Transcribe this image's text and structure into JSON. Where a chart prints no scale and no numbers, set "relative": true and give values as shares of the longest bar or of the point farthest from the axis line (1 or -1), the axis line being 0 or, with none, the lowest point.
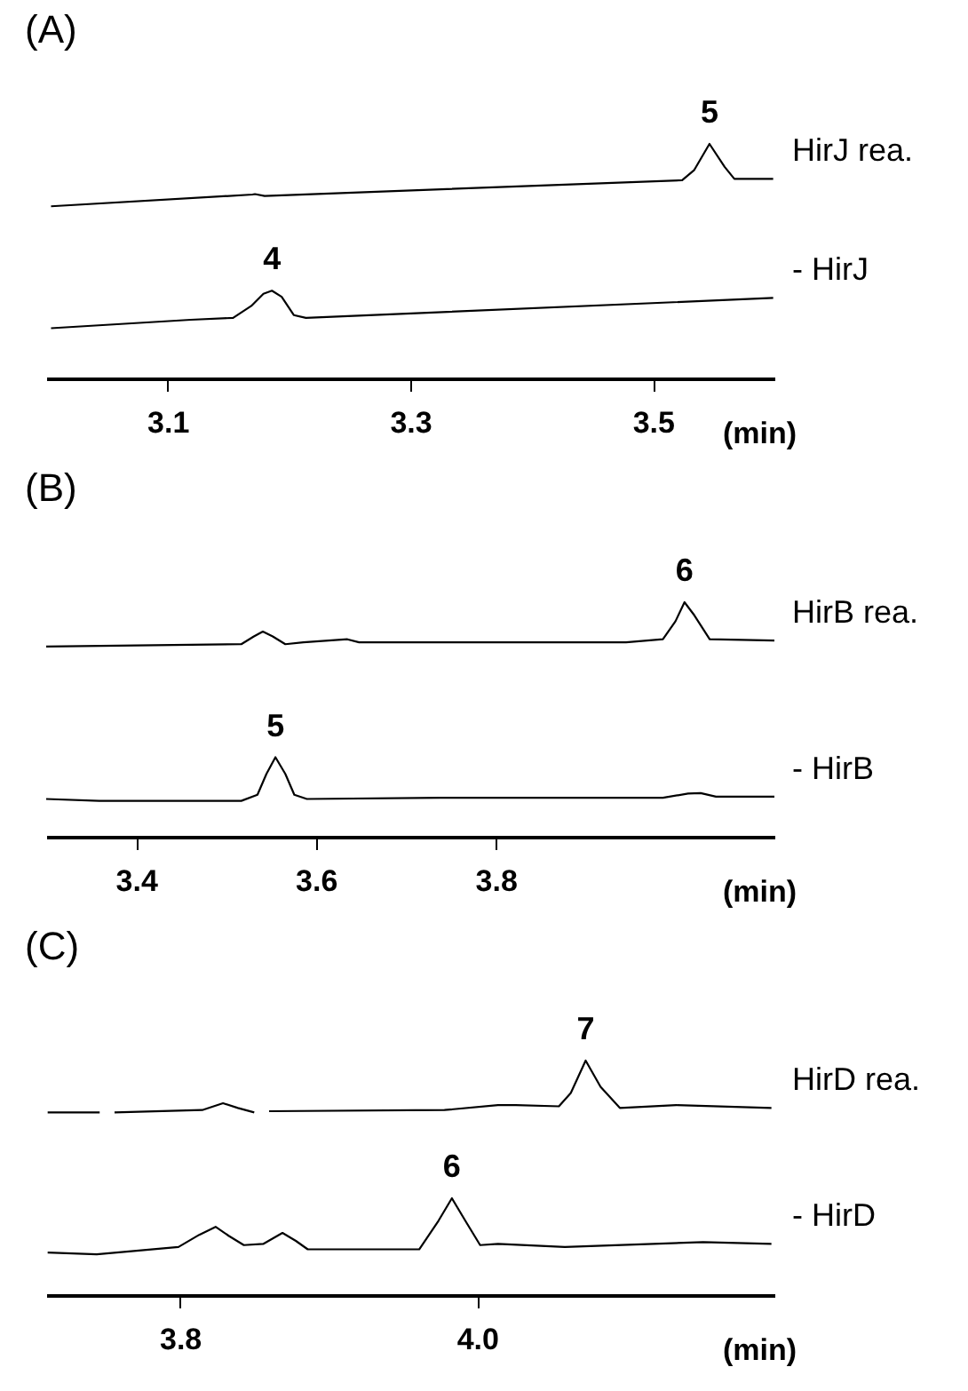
{
  "chart_data": [
    {
      "type": "line",
      "title": "(A)",
      "xlabel": "(min)",
      "relative": true,
      "xlim": [
        3.0,
        3.6
      ],
      "xticks": [
        3.1,
        3.3,
        3.5
      ],
      "series": [
        {
          "name": "HirJ rea.",
          "color": "#000000",
          "x": [
            3.004,
            3.17,
            3.172,
            3.18,
            3.524,
            3.534,
            3.5465,
            3.559,
            3.567,
            3.599
          ],
          "values": [
            0.734,
            0.784,
            0.786,
            0.778,
            0.845,
            0.889,
            1,
            0.902,
            0.851,
            0.851
          ]
        },
        {
          "name": "- HirJ",
          "color": "#000000",
          "x": [
            3.004,
            3.119,
            3.154,
            3.169,
            3.179,
            3.186,
            3.194,
            3.204,
            3.214,
            3.599
          ],
          "values": [
            0.214,
            0.25,
            0.258,
            0.309,
            0.361,
            0.374,
            0.348,
            0.27,
            0.258,
            0.343
          ]
        }
      ],
      "annotations": [
        {
          "text": "5",
          "x": 3.5465,
          "y": 1
        },
        {
          "text": "4",
          "x": 3.186,
          "y": 0.374
        }
      ]
    },
    {
      "type": "line",
      "title": "(B)",
      "xlabel": "(min)",
      "relative": true,
      "xlim": [
        3.3,
        4.11
      ],
      "xticks": [
        3.4,
        3.6,
        3.8
      ],
      "series": [
        {
          "name": "HirB rea.",
          "color": "#000000",
          "x": [
            3.3,
            3.517,
            3.531,
            3.541,
            3.552,
            3.566,
            3.586,
            3.635,
            3.648,
            3.945,
            3.986,
            4.0,
            4.01,
            4.021,
            4.038,
            4.11
          ],
          "values": [
            0.811,
            0.821,
            0.854,
            0.875,
            0.854,
            0.821,
            0.829,
            0.842,
            0.829,
            0.829,
            0.842,
            0.919,
            1,
            0.944,
            0.842,
            0.837
          ]
        },
        {
          "name": "- HirB",
          "color": "#000000",
          "x": [
            3.3,
            3.359,
            3.517,
            3.535,
            3.545,
            3.555,
            3.566,
            3.576,
            3.59,
            3.738,
            3.986,
            4.014,
            4.028,
            4.045,
            4.11
          ],
          "values": [
            0.161,
            0.153,
            0.153,
            0.179,
            0.268,
            0.339,
            0.268,
            0.179,
            0.161,
            0.166,
            0.166,
            0.184,
            0.186,
            0.171,
            0.171
          ]
        }
      ],
      "annotations": [
        {
          "text": "6",
          "x": 4.01,
          "y": 1
        },
        {
          "text": "5",
          "x": 3.555,
          "y": 0.339
        }
      ]
    },
    {
      "type": "line",
      "title": "(C)",
      "xlabel": "(min)",
      "relative": true,
      "xlim": [
        3.71,
        4.2
      ],
      "xticks": [
        3.8,
        {
          "value": 4,
          "label": "4.0"
        }
      ],
      "series": [
        {
          "name": "HirD rea.",
          "color": "#000000",
          "x": [
            3.711,
            3.746,
            3.75,
            3.756,
            3.815,
            3.829,
            3.839,
            3.85,
            3.855,
            3.86,
            3.978,
            4.014,
            4.026,
            4.055,
            4.063,
            4.073,
            4.083,
            4.096,
            4.134,
            4.198
          ],
          "values": [
            0.779,
            0.779,
            null,
            0.779,
            0.789,
            0.818,
            0.798,
            0.779,
            null,
            0.784,
            0.789,
            0.81,
            0.81,
            0.805,
            0.862,
            1,
            0.888,
            0.798,
            0.81,
            0.798
          ]
        },
        {
          "name": "- HirD",
          "color": "#000000",
          "x": [
            3.711,
            3.744,
            3.799,
            3.813,
            3.824,
            3.833,
            3.843,
            3.856,
            3.869,
            3.878,
            3.886,
            3.961,
            3.974,
            3.983,
            3.992,
            4.002,
            4.014,
            4.059,
            4.152,
            4.198
          ],
          "values": [
            0.181,
            0.174,
            0.205,
            0.257,
            0.291,
            0.252,
            0.213,
            0.218,
            0.265,
            0.231,
            0.195,
            0.195,
            0.317,
            0.413,
            0.317,
            0.213,
            0.218,
            0.205,
            0.226,
            0.218
          ]
        }
      ],
      "annotations": [
        {
          "text": "7",
          "x": 4.073,
          "y": 1
        },
        {
          "text": "6",
          "x": 3.983,
          "y": 0.413
        }
      ]
    }
  ]
}
